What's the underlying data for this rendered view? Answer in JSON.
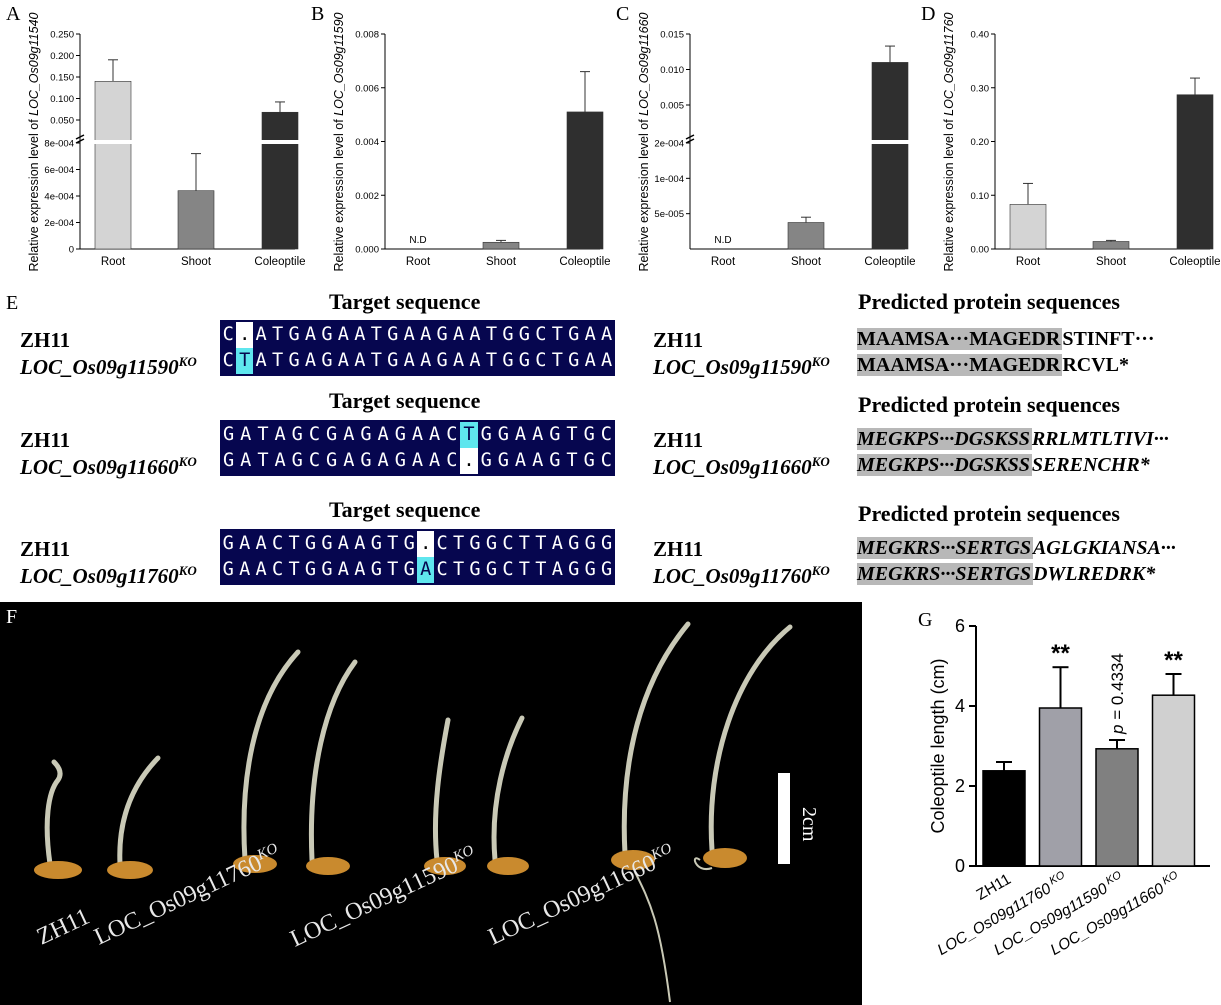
{
  "expression_charts": [
    {
      "letter": "A",
      "ylabel_prefix": "Relative expression level of ",
      "gene": "LOC_Os09g11540",
      "categories": [
        "Root",
        "Shoot",
        "Coleoptile"
      ],
      "upper_ticks": [
        "0.250",
        "0.200",
        "0.150",
        "0.100",
        "0.050"
      ],
      "lower_ticks": [
        "8e-004",
        "6e-004",
        "4e-004",
        "2e-004",
        "0"
      ],
      "values": [
        0.14,
        0.00044,
        0.068
      ],
      "errors_upper": [
        0.19,
        0.00072,
        0.092
      ],
      "nd": [
        false,
        false,
        false
      ]
    },
    {
      "letter": "B",
      "ylabel_prefix": "Relative expression level of ",
      "gene": "LOC_Os09g11590",
      "categories": [
        "Root",
        "Shoot",
        "Coleoptile"
      ],
      "ticks": [
        "0.008",
        "0.006",
        "0.004",
        "0.002",
        "0.000"
      ],
      "values": [
        0,
        0.00025,
        0.0051
      ],
      "errors_upper": [
        0,
        0.00032,
        0.0066
      ],
      "nd": [
        true,
        false,
        false
      ],
      "nd_label": "N.D"
    },
    {
      "letter": "C",
      "ylabel_prefix": "Relative expression level of ",
      "gene": "LOC_Os09g11660",
      "categories": [
        "Root",
        "Shoot",
        "Coleoptile"
      ],
      "upper_ticks": [
        "0.015",
        "0.010",
        "0.005"
      ],
      "lower_ticks": [
        "2e-004",
        "1e-004",
        "5e-005"
      ],
      "values": [
        0,
        5e-05,
        0.011
      ],
      "errors_upper": [
        0,
        6e-05,
        0.0133
      ],
      "nd": [
        true,
        false,
        false
      ],
      "nd_label": "N.D"
    },
    {
      "letter": "D",
      "ylabel_prefix": "Relative expression level of ",
      "gene": "LOC_Os09g11760",
      "categories": [
        "Root",
        "Shoot",
        "Coleoptile"
      ],
      "ticks": [
        "0.40",
        "0.30",
        "0.20",
        "0.10",
        "0.00"
      ],
      "values": [
        0.083,
        0.014,
        0.287
      ],
      "errors_upper": [
        0.122,
        0.016,
        0.318
      ],
      "nd": [
        false,
        false,
        false
      ]
    }
  ],
  "panel_e": {
    "letter": "E",
    "target_title": "Target sequence",
    "protein_title": "Predicted protein sequences",
    "groups": [
      {
        "wt": "ZH11",
        "ko_gene": "LOC_Os09g11590",
        "ko_sup": "KO",
        "seq_wt": "C.ATGAGAATGAAGAATGGCTGAA",
        "seq_ko": "CTATGAGAATGAAGAATGGCTGAA",
        "wt_gap_index": 1,
        "ko_hl_index": 1,
        "prot_wt_shaded": "MAAMSA···MAGEDR",
        "prot_wt_rest": "STINFT···",
        "prot_ko_shaded": "MAAMSA···MAGEDR",
        "prot_ko_rest": "RCVL*",
        "italic": false
      },
      {
        "wt": "ZH11",
        "ko_gene": "LOC_Os09g11660",
        "ko_sup": "KO",
        "seq_wt": "GATAGCGAGAGAACTGGAAGTGC",
        "seq_ko": "GATAGCGAGAGAAC.GGAAGTGC",
        "wt_hl_index": 14,
        "ko_gap_index": 14,
        "prot_wt_shaded": "MEGKPS···DGSKSS",
        "prot_wt_rest": "RRLMTLTIVI···",
        "prot_ko_shaded": "MEGKPS···DGSKSS",
        "prot_ko_rest": "SERENCHR*",
        "italic": true
      },
      {
        "wt": "ZH11",
        "ko_gene": "LOC_Os09g11760",
        "ko_sup": "KO",
        "seq_wt": "GAACTGGAAGTG.CTGGCTTAGGG",
        "seq_ko": "GAACTGGAAGTGACTGGCTTAGGG",
        "wt_gap_index": 12,
        "ko_hl_index": 12,
        "prot_wt_shaded": "MEGKRS···SERTGS",
        "prot_wt_rest": "AGLGKIANSA···",
        "prot_ko_shaded": "MEGKRS···SERTGS",
        "prot_ko_rest": "DWLREDRK*",
        "italic": true
      }
    ]
  },
  "panel_f": {
    "letter": "F",
    "labels": [
      "ZH11",
      "LOC_Os09g11760",
      "LOC_Os09g11590",
      "LOC_Os09g11660"
    ],
    "label_sup": "KO",
    "scale_label": "2cm"
  },
  "chart_data": {
    "type": "bar",
    "letter": "G",
    "categories": [
      "ZH11",
      "LOC_Os09g11760",
      "LOC_Os09g11590",
      "LOC_Os09g11660"
    ],
    "category_sup": "KO",
    "values": [
      2.38,
      3.95,
      2.93,
      4.27
    ],
    "errors": [
      0.22,
      1.02,
      0.22,
      0.53
    ],
    "colors": [
      "#000000",
      "#a0a0a8",
      "#808080",
      "#d0d0d0"
    ],
    "annotations": [
      "",
      "**",
      "p = 0.4334",
      "**"
    ],
    "ylabel": "Coleoptile length (cm)",
    "ylim": [
      0,
      6
    ],
    "yticks": [
      "0",
      "2",
      "4",
      "6"
    ]
  }
}
